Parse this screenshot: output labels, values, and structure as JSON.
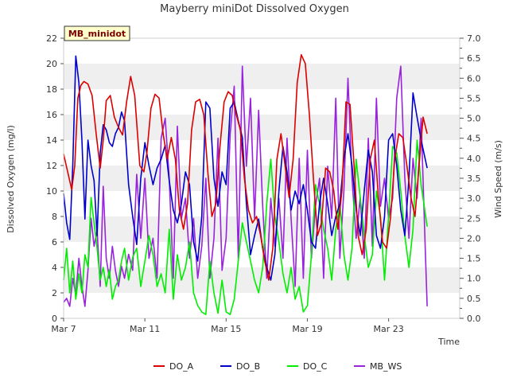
{
  "chart_data": {
    "type": "line",
    "title": "Mayberry miniDot Dissolved Oxygen",
    "badge": "MB_minidot",
    "xlabel": "Time",
    "ylabel": "Dissolved Oxygen (mg/l)",
    "y2label": "Wind Speed (m/s)",
    "xlim": [
      0,
      19.5
    ],
    "ylim": [
      0,
      22
    ],
    "y2lim": [
      0,
      7.0
    ],
    "x_unit": "days since Mar 7",
    "x_ticks": [
      {
        "v": 0,
        "label": "Mar 7"
      },
      {
        "v": 4,
        "label": "Mar 11"
      },
      {
        "v": 8,
        "label": "Mar 15"
      },
      {
        "v": 12,
        "label": "Mar 19"
      },
      {
        "v": 16,
        "label": "Mar 23"
      }
    ],
    "y_ticks": [
      "0",
      "2",
      "4",
      "6",
      "8",
      "10",
      "12",
      "14",
      "16",
      "18",
      "20",
      "22"
    ],
    "y2_ticks": [
      "0.0",
      "0.25",
      "0.5",
      "0.75",
      "1.0",
      "1.25",
      "1.5",
      "1.75",
      "2.0",
      "2.25",
      "2.5",
      "2.75",
      "3.0",
      "3.25",
      "3.5",
      "3.75",
      "4.0",
      "4.25",
      "4.5",
      "4.75",
      "5.0",
      "5.25",
      "5.5",
      "5.75",
      "6.0",
      "6.25",
      "6.5",
      "6.75",
      "7.0"
    ],
    "y2_tick_values": [
      0,
      0.25,
      0.5,
      0.75,
      1.0,
      1.25,
      1.5,
      1.75,
      2.0,
      2.25,
      2.5,
      2.75,
      3.0,
      3.25,
      3.5,
      3.75,
      4.0,
      4.25,
      4.5,
      4.75,
      5.0,
      5.25,
      5.5,
      5.75,
      6.0,
      6.25,
      6.5,
      6.75,
      7.0
    ],
    "grid": "horizontal bands",
    "legend_position": "bottom",
    "series": [
      {
        "name": "DO_A",
        "color": "#dd0000",
        "axis": "left",
        "x": [
          0.0,
          0.2,
          0.4,
          0.55,
          0.7,
          0.85,
          1.0,
          1.2,
          1.4,
          1.6,
          1.8,
          1.95,
          2.1,
          2.3,
          2.5,
          2.7,
          2.9,
          3.1,
          3.3,
          3.5,
          3.75,
          3.95,
          4.1,
          4.3,
          4.5,
          4.7,
          4.9,
          5.1,
          5.3,
          5.5,
          5.7,
          5.9,
          6.1,
          6.3,
          6.5,
          6.7,
          6.9,
          7.1,
          7.3,
          7.5,
          7.7,
          7.9,
          8.1,
          8.3,
          8.5,
          8.7,
          8.9,
          9.1,
          9.3,
          9.5,
          9.7,
          9.9,
          10.1,
          10.3,
          10.5,
          10.7,
          10.9,
          11.1,
          11.3,
          11.5,
          11.7,
          11.9,
          12.1,
          12.3,
          12.5,
          12.7,
          12.9,
          13.1,
          13.3,
          13.5,
          13.7,
          13.9,
          14.1,
          14.3,
          14.5,
          14.7,
          14.9,
          15.1,
          15.3,
          15.5,
          15.7,
          15.9,
          16.1,
          16.3,
          16.5,
          16.7,
          16.9,
          17.1,
          17.3,
          17.5,
          17.7,
          17.9
        ],
        "y": [
          12.9,
          11.5,
          10.1,
          12.0,
          17.3,
          18.3,
          18.6,
          18.4,
          17.5,
          14.5,
          11.8,
          14.0,
          17.1,
          17.5,
          15.8,
          15.0,
          14.4,
          17.0,
          19.0,
          17.5,
          12.0,
          11.5,
          13.0,
          16.5,
          17.6,
          17.3,
          14.5,
          12.5,
          14.2,
          12.5,
          8.5,
          7.0,
          9.0,
          14.8,
          17.0,
          17.2,
          16.0,
          11.5,
          8.0,
          9.0,
          13.5,
          17.0,
          17.8,
          17.5,
          16.0,
          14.8,
          11.0,
          8.5,
          7.5,
          8.0,
          6.5,
          4.5,
          3.0,
          5.5,
          12.5,
          14.5,
          12.0,
          9.5,
          12.5,
          18.5,
          20.7,
          20.0,
          16.0,
          11.0,
          6.5,
          7.5,
          11.8,
          11.5,
          10.0,
          7.0,
          10.0,
          17.0,
          16.8,
          12.0,
          6.5,
          5.0,
          7.0,
          12.5,
          14.0,
          9.5,
          6.0,
          5.5,
          8.0,
          12.5,
          14.5,
          14.2,
          12.0,
          9.5,
          8.0,
          12.0,
          15.8,
          14.5
        ],
        "values": [
          12.9,
          11.5,
          10.1,
          12.0,
          17.3,
          18.3,
          18.6,
          18.4,
          17.5,
          14.5,
          11.8,
          14.0,
          17.1,
          17.5,
          15.8,
          15.0,
          14.4,
          17.0,
          19.0,
          17.5,
          12.0,
          11.5,
          13.0,
          16.5,
          17.6,
          17.3,
          14.5,
          12.5,
          14.2,
          12.5,
          8.5,
          7.0,
          9.0,
          14.8,
          17.0,
          17.2,
          16.0,
          11.5,
          8.0,
          9.0,
          13.5,
          17.0,
          17.8,
          17.5,
          16.0,
          14.8,
          11.0,
          8.5,
          7.5,
          8.0,
          6.5,
          4.5,
          3.0,
          5.5,
          12.5,
          14.5,
          12.0,
          9.5,
          12.5,
          18.5,
          20.7,
          20.0,
          16.0,
          11.0,
          6.5,
          7.5,
          11.8,
          11.5,
          10.0,
          7.0,
          10.0,
          17.0,
          16.8,
          12.0,
          6.5,
          5.0,
          7.0,
          12.5,
          14.0,
          9.5,
          6.0,
          5.5,
          8.0,
          12.5,
          14.5,
          14.2,
          12.0,
          9.5,
          8.0,
          12.0,
          15.8,
          14.5
        ]
      },
      {
        "name": "DO_B",
        "color": "#0000cc",
        "axis": "left",
        "x": [
          0.0,
          0.15,
          0.3,
          0.45,
          0.6,
          0.75,
          0.9,
          1.05,
          1.2,
          1.35,
          1.5,
          1.65,
          1.8,
          1.95,
          2.1,
          2.25,
          2.4,
          2.55,
          2.7,
          2.85,
          3.0,
          3.2,
          3.4,
          3.6,
          3.8,
          4.0,
          4.2,
          4.4,
          4.6,
          4.8,
          5.0,
          5.2,
          5.4,
          5.6,
          5.8,
          6.0,
          6.2,
          6.4,
          6.6,
          6.8,
          7.0,
          7.2,
          7.4,
          7.6,
          7.8,
          8.0,
          8.2,
          8.4,
          8.6,
          8.8,
          9.0,
          9.2,
          9.4,
          9.6,
          9.8,
          10.0,
          10.2,
          10.4,
          10.6,
          10.8,
          11.0,
          11.2,
          11.4,
          11.6,
          11.8,
          12.0,
          12.2,
          12.4,
          12.6,
          12.8,
          13.0,
          13.2,
          13.4,
          13.6,
          13.8,
          14.0,
          14.2,
          14.4,
          14.6,
          14.8,
          15.0,
          15.2,
          15.4,
          15.6,
          15.8,
          16.0,
          16.2,
          16.4,
          16.6,
          16.8,
          17.0,
          17.2,
          17.4,
          17.6,
          17.9
        ],
        "y": [
          9.8,
          7.5,
          6.2,
          12.0,
          20.6,
          18.5,
          14.0,
          7.8,
          14.0,
          12.0,
          10.8,
          6.5,
          13.0,
          15.2,
          14.8,
          13.8,
          13.5,
          14.5,
          15.0,
          16.2,
          15.5,
          10.5,
          8.0,
          5.8,
          11.0,
          13.8,
          12.0,
          10.5,
          11.8,
          12.5,
          13.6,
          10.8,
          8.5,
          7.5,
          9.0,
          11.5,
          10.5,
          6.0,
          4.5,
          8.0,
          17.0,
          16.5,
          11.0,
          8.8,
          11.5,
          10.5,
          16.5,
          17.0,
          15.5,
          14.2,
          9.0,
          5.0,
          6.5,
          7.8,
          5.5,
          4.0,
          3.0,
          5.0,
          10.0,
          13.5,
          11.5,
          8.5,
          10.0,
          9.0,
          10.5,
          8.5,
          6.0,
          5.5,
          9.0,
          11.0,
          9.0,
          6.5,
          8.0,
          9.0,
          12.5,
          14.5,
          12.0,
          8.5,
          6.5,
          10.0,
          13.2,
          11.5,
          6.5,
          5.5,
          8.0,
          14.0,
          14.5,
          12.0,
          8.5,
          6.5,
          11.0,
          17.7,
          15.8,
          14.0,
          11.8
        ]
      },
      {
        "name": "DO_C",
        "color": "#00ee00",
        "axis": "left",
        "x": [
          0.0,
          0.15,
          0.3,
          0.45,
          0.6,
          0.75,
          0.9,
          1.05,
          1.2,
          1.35,
          1.5,
          1.65,
          1.8,
          1.95,
          2.1,
          2.25,
          2.4,
          2.55,
          2.7,
          2.85,
          3.0,
          3.2,
          3.4,
          3.6,
          3.8,
          4.0,
          4.2,
          4.4,
          4.6,
          4.8,
          5.0,
          5.2,
          5.4,
          5.6,
          5.8,
          6.0,
          6.2,
          6.4,
          6.6,
          6.8,
          7.0,
          7.2,
          7.4,
          7.6,
          7.8,
          8.0,
          8.2,
          8.4,
          8.6,
          8.8,
          9.0,
          9.2,
          9.4,
          9.6,
          9.8,
          10.0,
          10.2,
          10.4,
          10.6,
          10.8,
          11.0,
          11.2,
          11.4,
          11.6,
          11.8,
          12.0,
          12.2,
          12.4,
          12.6,
          12.8,
          13.0,
          13.2,
          13.4,
          13.6,
          13.8,
          14.0,
          14.2,
          14.4,
          14.6,
          14.8,
          15.0,
          15.2,
          15.4,
          15.6,
          15.8,
          16.0,
          16.2,
          16.4,
          16.6,
          16.8,
          17.0,
          17.2,
          17.4,
          17.6,
          17.9
        ],
        "y": [
          3.0,
          5.5,
          2.0,
          4.5,
          1.5,
          3.5,
          2.0,
          5.0,
          4.0,
          9.5,
          7.5,
          5.5,
          3.0,
          4.0,
          2.5,
          3.8,
          1.5,
          2.5,
          3.0,
          4.5,
          5.5,
          3.0,
          4.8,
          5.5,
          2.5,
          4.5,
          6.5,
          5.0,
          2.5,
          3.5,
          2.0,
          7.0,
          1.5,
          5.0,
          3.0,
          4.0,
          6.0,
          2.0,
          1.0,
          0.5,
          0.3,
          4.5,
          2.0,
          0.4,
          3.0,
          0.5,
          0.3,
          1.5,
          4.5,
          7.5,
          6.0,
          4.5,
          3.0,
          2.0,
          4.0,
          9.0,
          12.5,
          8.0,
          6.0,
          3.5,
          2.0,
          4.0,
          1.5,
          2.5,
          0.5,
          1.0,
          5.0,
          10.5,
          9.0,
          7.0,
          5.5,
          3.0,
          7.0,
          9.0,
          5.0,
          3.0,
          5.5,
          12.5,
          9.5,
          6.5,
          4.0,
          5.0,
          10.0,
          8.0,
          3.0,
          8.0,
          13.5,
          13.0,
          10.0,
          6.5,
          4.0,
          7.0,
          14.0,
          10.5,
          7.2
        ]
      },
      {
        "name": "MB_WS",
        "color": "#9922dd",
        "axis": "right",
        "x": [
          0.0,
          0.15,
          0.3,
          0.45,
          0.6,
          0.75,
          0.9,
          1.05,
          1.2,
          1.35,
          1.5,
          1.65,
          1.8,
          1.95,
          2.1,
          2.25,
          2.4,
          2.55,
          2.7,
          2.85,
          3.0,
          3.2,
          3.4,
          3.6,
          3.8,
          4.0,
          4.2,
          4.4,
          4.6,
          4.8,
          5.0,
          5.2,
          5.4,
          5.6,
          5.8,
          6.0,
          6.2,
          6.4,
          6.6,
          6.8,
          7.0,
          7.2,
          7.4,
          7.6,
          7.8,
          8.0,
          8.2,
          8.4,
          8.6,
          8.8,
          9.0,
          9.2,
          9.4,
          9.6,
          9.8,
          10.0,
          10.2,
          10.4,
          10.6,
          10.8,
          11.0,
          11.2,
          11.4,
          11.6,
          11.8,
          12.0,
          12.2,
          12.4,
          12.6,
          12.8,
          13.0,
          13.2,
          13.4,
          13.6,
          13.8,
          14.0,
          14.2,
          14.4,
          14.6,
          14.8,
          15.0,
          15.2,
          15.4,
          15.6,
          15.8,
          16.0,
          16.2,
          16.4,
          16.6,
          16.8,
          17.0,
          17.2,
          17.4,
          17.6,
          17.8,
          17.9
        ],
        "y": [
          0.4,
          0.5,
          0.3,
          1.0,
          0.6,
          1.5,
          0.8,
          0.3,
          1.2,
          2.5,
          1.8,
          2.2,
          0.8,
          3.3,
          1.5,
          1.0,
          1.8,
          1.2,
          0.8,
          1.3,
          1.0,
          1.6,
          1.2,
          3.6,
          2.0,
          3.5,
          1.5,
          2.0,
          1.0,
          4.5,
          5.0,
          3.5,
          1.0,
          4.8,
          2.5,
          3.0,
          1.5,
          2.5,
          1.0,
          1.8,
          3.5,
          1.0,
          2.0,
          4.5,
          1.2,
          2.0,
          4.6,
          5.8,
          1.5,
          6.3,
          3.8,
          5.5,
          2.5,
          5.2,
          2.8,
          1.0,
          3.0,
          1.8,
          3.0,
          1.5,
          4.5,
          2.5,
          0.8,
          4.0,
          1.0,
          4.2,
          1.5,
          2.8,
          3.5,
          1.0,
          3.8,
          2.5,
          5.5,
          1.5,
          3.2,
          6.0,
          3.5,
          2.0,
          3.0,
          1.5,
          4.5,
          1.8,
          5.5,
          2.8,
          3.5,
          2.5,
          3.0,
          5.5,
          6.3,
          3.5,
          2.0,
          4.0,
          3.0,
          5.0,
          1.8,
          0.3
        ]
      }
    ]
  }
}
